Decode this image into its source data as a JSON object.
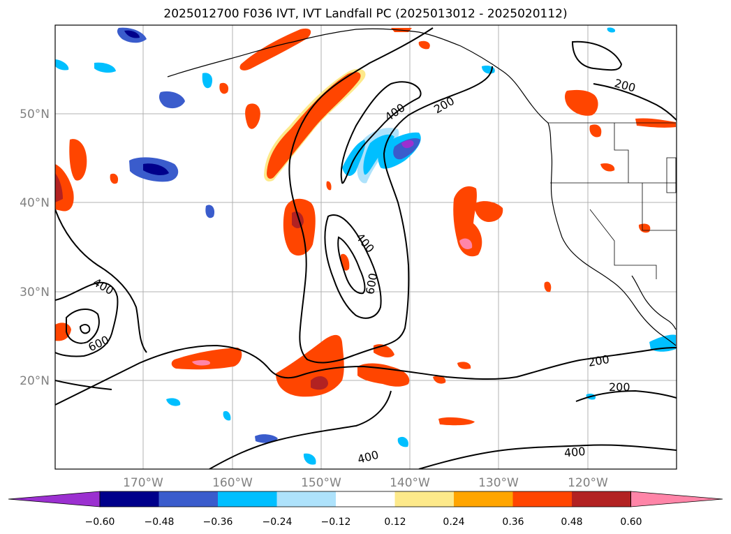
{
  "title": "2025012700 F036 IVT, IVT Landfall PC (2025013012 - 2025020112)",
  "map": {
    "lat_labels": [
      "50°N",
      "40°N",
      "30°N",
      "20°N"
    ],
    "lon_labels": [
      "170°W",
      "160°W",
      "150°W",
      "140°W",
      "130°W",
      "120°W"
    ],
    "contour_labels": [
      "200",
      "200",
      "200",
      "200",
      "400",
      "400",
      "400",
      "400",
      "400",
      "600",
      "600"
    ]
  },
  "colorbar": {
    "ticks": [
      "−0.60",
      "−0.48",
      "−0.36",
      "−0.24",
      "−0.12",
      "0.12",
      "0.24",
      "0.36",
      "0.48",
      "0.60"
    ],
    "colors": [
      "#9b30d0",
      "#00008b",
      "#3a5ccc",
      "#00bfff",
      "#aee2fb",
      "#ffffff",
      "#fde98a",
      "#ffa500",
      "#ff4500",
      "#b22222",
      "#ff85a8"
    ]
  }
}
